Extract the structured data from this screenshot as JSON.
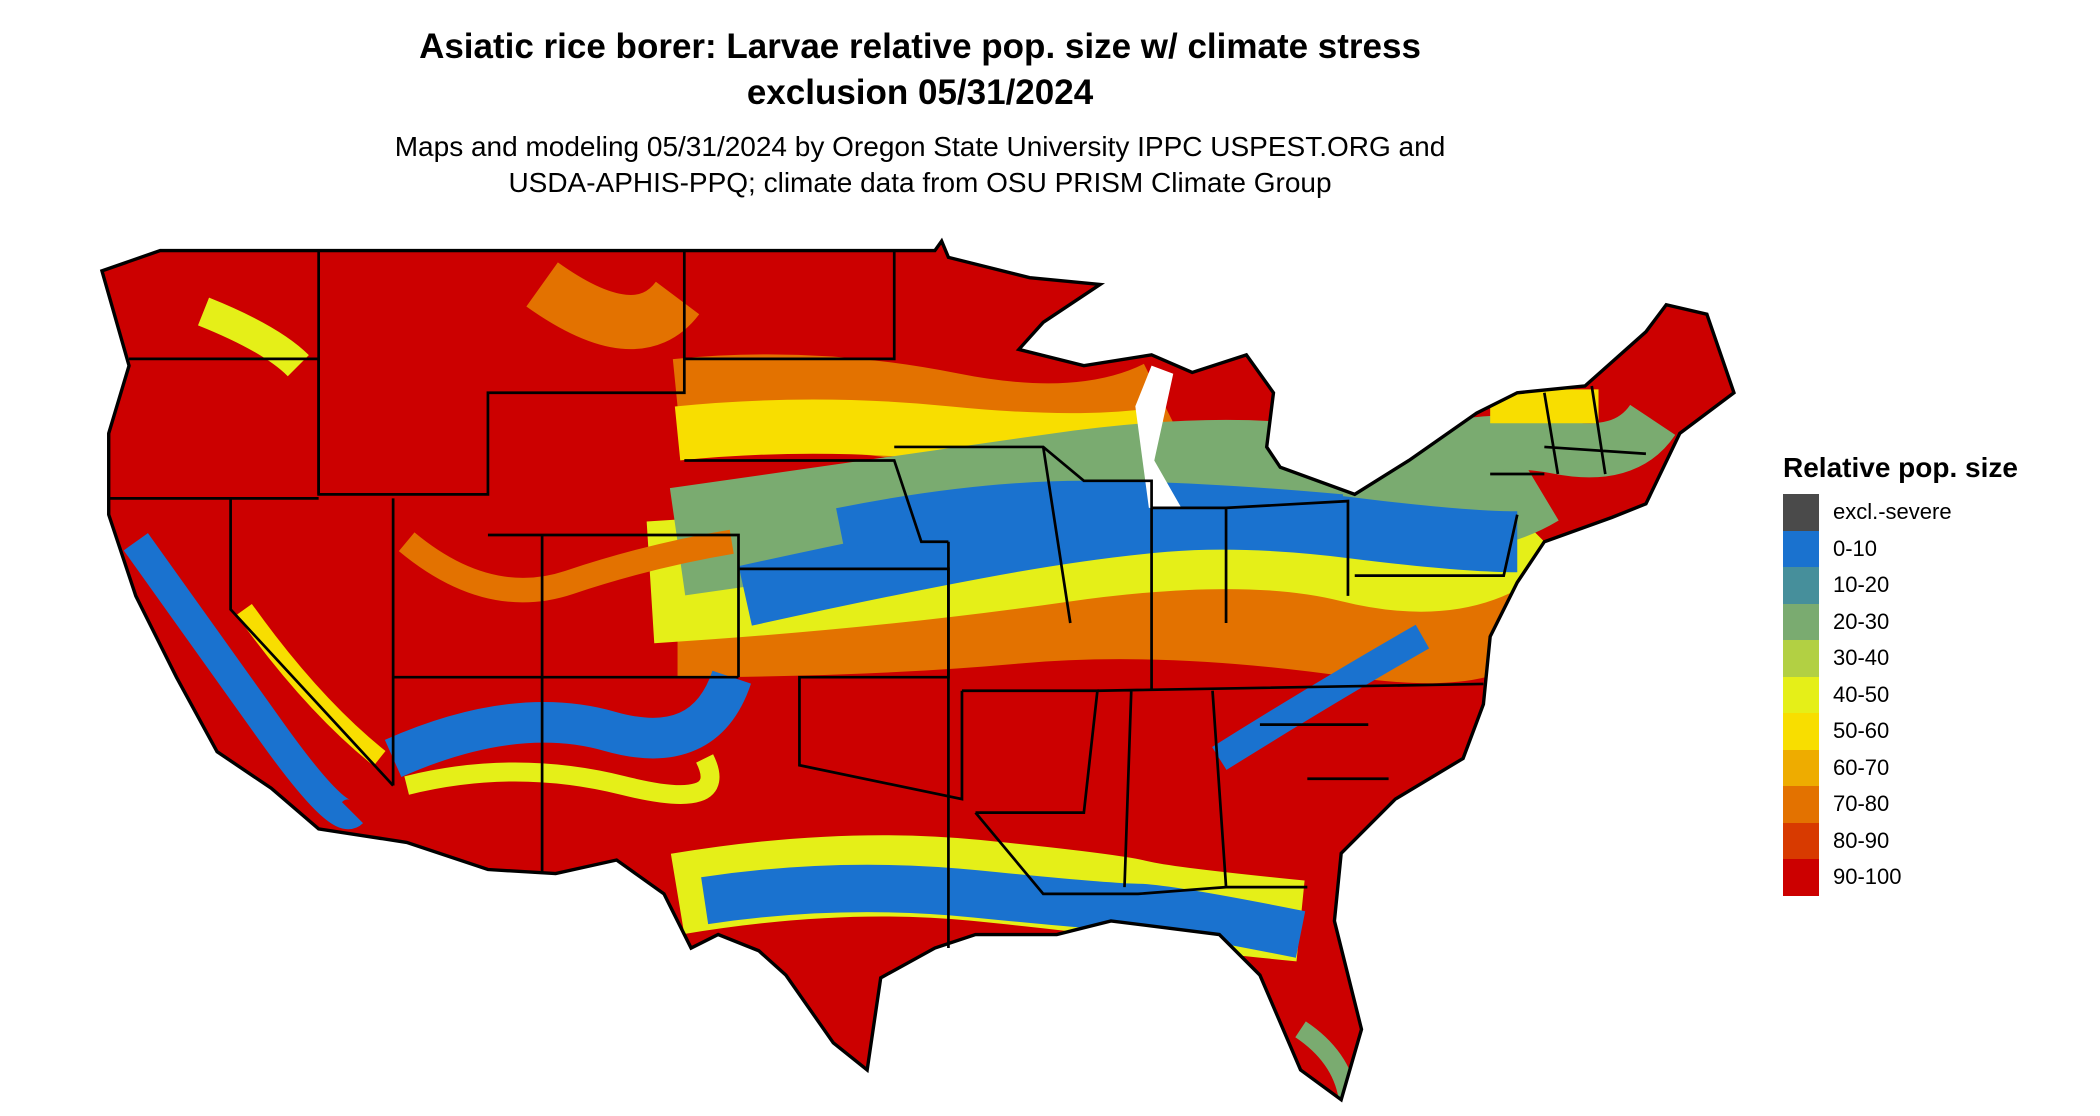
{
  "title_line1": "Asiatic rice borer: Larvae relative pop. size w/ climate stress",
  "title_line2": "exclusion 05/31/2024",
  "subtitle_line1": "Maps and modeling 05/31/2024 by Oregon State University IPPC USPEST.ORG and",
  "subtitle_line2": "USDA-APHIS-PPQ; climate data from OSU PRISM Climate Group",
  "legend": {
    "title": "Relative pop. size",
    "items": [
      {
        "label": "excl.-severe",
        "color": "#4a4a4a"
      },
      {
        "label": "0-10",
        "color": "#1a72cf"
      },
      {
        "label": "10-20",
        "color": "#468f9b"
      },
      {
        "label": "20-30",
        "color": "#7aab70"
      },
      {
        "label": "30-40",
        "color": "#b2d043"
      },
      {
        "label": "40-50",
        "color": "#e5ef18"
      },
      {
        "label": "50-60",
        "color": "#f8de00"
      },
      {
        "label": "60-70",
        "color": "#eeac00"
      },
      {
        "label": "70-80",
        "color": "#e37200"
      },
      {
        "label": "80-90",
        "color": "#d83a00"
      },
      {
        "label": "90-100",
        "color": "#cc0000"
      }
    ]
  }
}
